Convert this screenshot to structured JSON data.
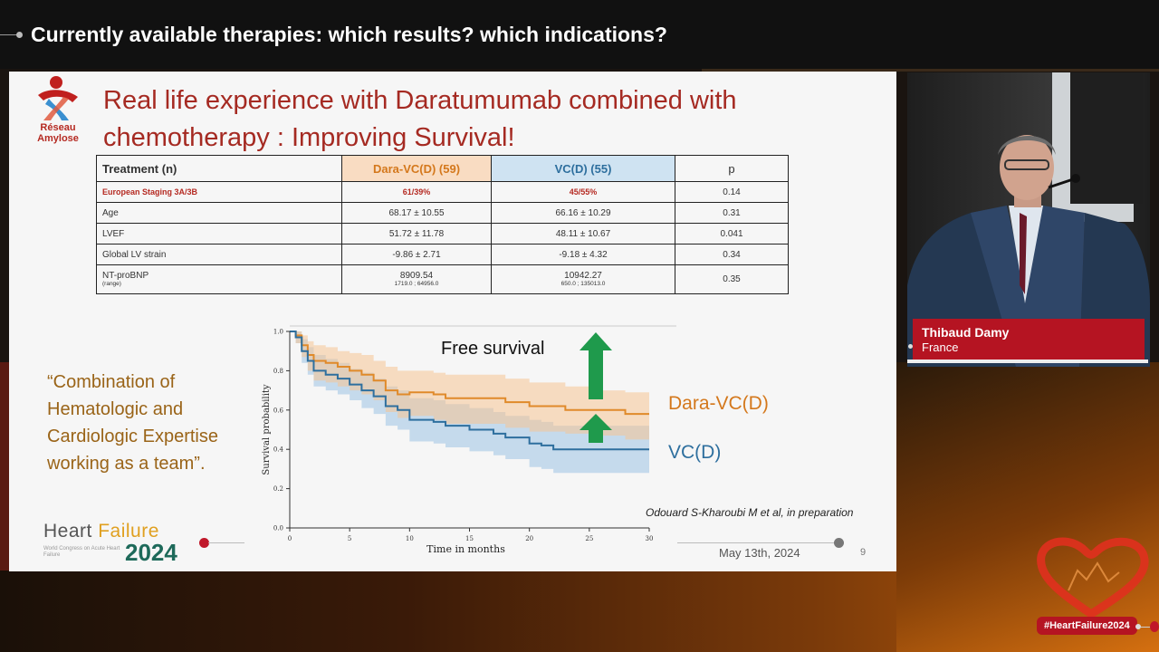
{
  "header": {
    "title": "Currently available therapies: which results? which indications?"
  },
  "slide": {
    "logo": {
      "line1": "Réseau",
      "line2": "Amylose"
    },
    "title": "Real life experience with Daratumumab combined with chemotherapy : Improving Survival!",
    "table": {
      "headers": [
        "Treatment (n)",
        "Dara-VC(D) (59)",
        "VC(D) (55)",
        "p"
      ],
      "rows": [
        {
          "label": "European Staging 3A/3B",
          "dara": "61/39%",
          "vc": "45/55%",
          "p": "0.14"
        },
        {
          "label": "Age",
          "dara": "68.17 ± 10.55",
          "vc": "66.16 ± 10.29",
          "p": "0.31"
        },
        {
          "label": "LVEF",
          "dara": "51.72 ± 11.78",
          "vc": "48.11 ± 10.67",
          "p": "0.041"
        },
        {
          "label": "Global LV strain",
          "dara": "-9.86 ± 2.71",
          "vc": "-9.18 ± 4.32",
          "p": "0.34"
        },
        {
          "label": "NT-proBNP",
          "label_sub": "(range)",
          "dara": "8909.54",
          "dara_sub": "1719.0 ; 64956.0",
          "vc": "10942.27",
          "vc_sub": "650.0 ; 135013.0",
          "p": "0.35"
        }
      ]
    },
    "quote": "“Combination of Hematologic and Cardiologic Expertise working as a team”.",
    "chart_label": "Free survival",
    "series_labels": {
      "dara": "Dara-VC(D)",
      "vc": "VC(D)"
    },
    "citation": "Odouard S-Kharoubi M et al, in preparation",
    "date": "May 13th, 2024",
    "page_number": "9",
    "footer_logo": {
      "word1": "Heart",
      "word2": "Failure",
      "sub": "World Congress on Acute Heart Failure",
      "year": "2024"
    }
  },
  "chart_data": {
    "type": "line",
    "xlabel": "Time in months",
    "ylabel": "Survival probability",
    "xlim": [
      0,
      30
    ],
    "ylim": [
      0,
      1.0
    ],
    "xticks": [
      0,
      5,
      10,
      15,
      20,
      25,
      30
    ],
    "yticks": [
      0.0,
      0.2,
      0.4,
      0.6,
      0.8,
      1.0
    ],
    "series": [
      {
        "name": "Dara-VC(D)",
        "color": "#e08a2a",
        "x": [
          0,
          0.5,
          1,
          1.5,
          2,
          3,
          4,
          5,
          6,
          7,
          8,
          9,
          10,
          12,
          13,
          15,
          18,
          20,
          22,
          23,
          24,
          25,
          26,
          28,
          30
        ],
        "y": [
          1.0,
          0.98,
          0.93,
          0.88,
          0.85,
          0.84,
          0.82,
          0.8,
          0.78,
          0.75,
          0.7,
          0.68,
          0.69,
          0.68,
          0.66,
          0.66,
          0.64,
          0.62,
          0.62,
          0.6,
          0.6,
          0.6,
          0.6,
          0.58,
          0.58
        ],
        "upper": [
          1.0,
          1.0,
          0.98,
          0.95,
          0.93,
          0.92,
          0.9,
          0.89,
          0.88,
          0.85,
          0.82,
          0.8,
          0.8,
          0.79,
          0.78,
          0.78,
          0.76,
          0.74,
          0.74,
          0.72,
          0.72,
          0.7,
          0.7,
          0.69,
          0.69
        ],
        "lower": [
          1.0,
          0.94,
          0.87,
          0.8,
          0.75,
          0.74,
          0.72,
          0.7,
          0.68,
          0.65,
          0.59,
          0.56,
          0.57,
          0.55,
          0.53,
          0.53,
          0.51,
          0.49,
          0.49,
          0.48,
          0.48,
          0.47,
          0.47,
          0.45,
          0.45
        ]
      },
      {
        "name": "VC(D)",
        "color": "#2e6f9e",
        "x": [
          0,
          0.5,
          1,
          1.5,
          2,
          3,
          4,
          5,
          6,
          7,
          8,
          9,
          10,
          12,
          13,
          15,
          17,
          18,
          20,
          21,
          22,
          24,
          26,
          28,
          30
        ],
        "y": [
          1.0,
          0.97,
          0.9,
          0.85,
          0.8,
          0.78,
          0.76,
          0.73,
          0.7,
          0.67,
          0.62,
          0.6,
          0.55,
          0.54,
          0.52,
          0.5,
          0.48,
          0.46,
          0.43,
          0.42,
          0.4,
          0.4,
          0.4,
          0.4,
          0.4
        ],
        "upper": [
          1.0,
          1.0,
          0.96,
          0.92,
          0.88,
          0.86,
          0.84,
          0.81,
          0.79,
          0.76,
          0.72,
          0.7,
          0.66,
          0.65,
          0.63,
          0.61,
          0.59,
          0.57,
          0.55,
          0.54,
          0.52,
          0.52,
          0.52,
          0.52,
          0.52
        ]
      }
    ]
  },
  "speaker": {
    "name": "Thibaud Damy",
    "country": "France"
  },
  "hashtag": "#HeartFailure2024"
}
